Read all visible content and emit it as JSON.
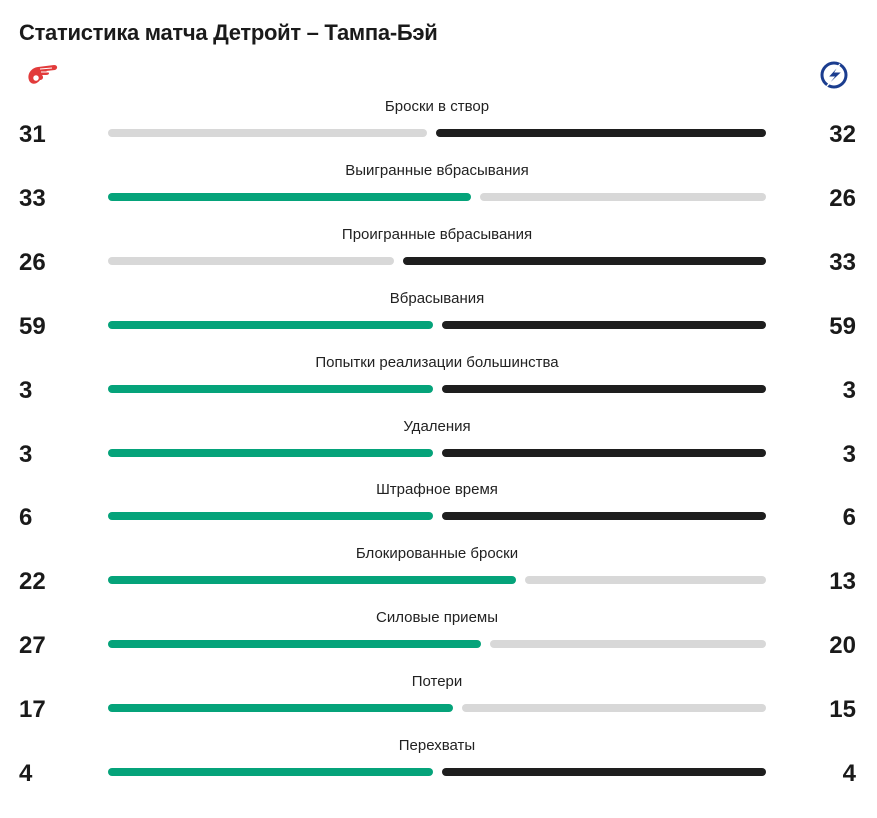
{
  "title": "Статистика матча Детройт – Тампа-Бэй",
  "teams": {
    "left": {
      "icon": "red-wings-logo-icon"
    },
    "right": {
      "icon": "lightning-logo-icon"
    }
  },
  "colors": {
    "win": "#05a37a",
    "lead_dark": "#1e1e1e",
    "neutral": "#d8d8d8",
    "left_logo": "#e23b3b",
    "right_logo": "#1b3d8f"
  },
  "chart_data": {
    "type": "bar",
    "title": "Статистика матча Детройт – Тампа-Бэй",
    "stats": [
      {
        "label": "Броски в створ",
        "left": 31,
        "right": 32
      },
      {
        "label": "Выигранные вбрасывания",
        "left": 33,
        "right": 26
      },
      {
        "label": "Проигранные вбрасывания",
        "left": 26,
        "right": 33
      },
      {
        "label": "Вбрасывания",
        "left": 59,
        "right": 59
      },
      {
        "label": "Попытки реализации большинства",
        "left": 3,
        "right": 3
      },
      {
        "label": "Удаления",
        "left": 3,
        "right": 3
      },
      {
        "label": "Штрафное время",
        "left": 6,
        "right": 6
      },
      {
        "label": "Блокированные броски",
        "left": 22,
        "right": 13
      },
      {
        "label": "Силовые приемы",
        "left": 27,
        "right": 20
      },
      {
        "label": "Потери",
        "left": 17,
        "right": 15
      },
      {
        "label": "Перехваты",
        "left": 4,
        "right": 4
      }
    ]
  }
}
